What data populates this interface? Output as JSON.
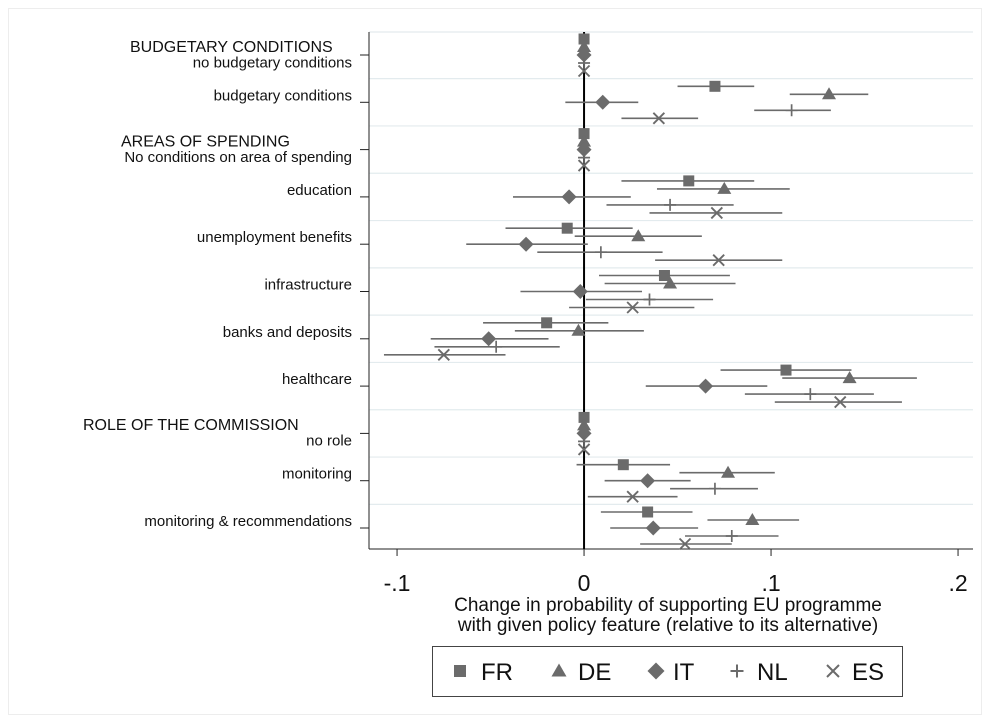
{
  "chart_data": {
    "type": "scatter",
    "xlabel": [
      "Change in probability of supporting EU programme",
      "with given policy feature (relative to its alternative)"
    ],
    "xlim": [
      -0.115,
      0.208
    ],
    "xticks": [
      {
        "value": -0.1,
        "label": "-.1"
      },
      {
        "value": 0,
        "label": "0"
      },
      {
        "value": 0.1,
        "label": ".1"
      },
      {
        "value": 0.2,
        "label": ".2"
      }
    ],
    "reference_line": 0,
    "confidence_intervals": true,
    "grid": true,
    "legend_position": "bottom",
    "groups": [
      {
        "heading": "BUDGETARY CONDITIONS",
        "first": 0
      },
      {
        "heading": "AREAS OF SPENDING",
        "first": 2
      },
      {
        "heading": "ROLE OF THE COMMISSION",
        "first": 8
      }
    ],
    "categories": [
      "no budgetary conditions",
      "budgetary conditions",
      "No conditions on area of spending",
      "education",
      "unemployment benefits",
      "infrastructure",
      "banks and deposits",
      "healthcare",
      "no role",
      "monitoring",
      "monitoring & recommendations"
    ],
    "series": [
      {
        "name": "FR",
        "marker": "square",
        "color": "#6b6b6b",
        "values": [
          0,
          0.07,
          0,
          0.056,
          -0.009,
          0.043,
          -0.02,
          0.108,
          0,
          0.021,
          0.034
        ],
        "ci_low": [
          null,
          0.05,
          null,
          0.02,
          -0.042,
          0.008,
          -0.054,
          0.073,
          null,
          -0.004,
          0.009
        ],
        "ci_high": [
          null,
          0.091,
          null,
          0.091,
          0.026,
          0.078,
          0.013,
          0.143,
          null,
          0.046,
          0.058
        ]
      },
      {
        "name": "DE",
        "marker": "triangle",
        "color": "#6b6b6b",
        "values": [
          0,
          0.131,
          0,
          0.075,
          0.029,
          0.046,
          -0.003,
          0.142,
          0,
          0.077,
          0.09
        ],
        "ci_low": [
          null,
          0.11,
          null,
          0.039,
          -0.005,
          0.011,
          -0.037,
          0.106,
          null,
          0.051,
          0.066
        ],
        "ci_high": [
          null,
          0.152,
          null,
          0.11,
          0.063,
          0.081,
          0.032,
          0.178,
          null,
          0.102,
          0.115
        ]
      },
      {
        "name": "IT",
        "marker": "diamond",
        "color": "#6b6b6b",
        "values": [
          0,
          0.01,
          0,
          -0.008,
          -0.031,
          -0.002,
          -0.051,
          0.065,
          0,
          0.034,
          0.037
        ],
        "ci_low": [
          null,
          -0.01,
          null,
          -0.038,
          -0.063,
          -0.034,
          -0.082,
          0.033,
          null,
          0.011,
          0.014
        ],
        "ci_high": [
          null,
          0.029,
          null,
          0.025,
          0.002,
          0.031,
          -0.019,
          0.098,
          null,
          0.057,
          0.061
        ]
      },
      {
        "name": "NL",
        "marker": "plus",
        "color": "#6b6b6b",
        "values": [
          0,
          0.111,
          0,
          0.046,
          0.009,
          0.035,
          -0.047,
          0.121,
          0,
          0.07,
          0.079
        ],
        "ci_low": [
          null,
          0.091,
          null,
          0.012,
          -0.025,
          0.001,
          -0.08,
          0.086,
          null,
          0.046,
          0.054
        ],
        "ci_high": [
          null,
          0.132,
          null,
          0.08,
          0.042,
          0.069,
          -0.013,
          0.155,
          null,
          0.093,
          0.104
        ]
      },
      {
        "name": "ES",
        "marker": "x",
        "color": "#6b6b6b",
        "values": [
          0,
          0.04,
          0,
          0.071,
          0.072,
          0.026,
          -0.075,
          0.137,
          0,
          0.026,
          0.054
        ],
        "ci_low": [
          null,
          0.02,
          null,
          0.035,
          0.038,
          -0.008,
          -0.107,
          0.102,
          null,
          0.002,
          0.03
        ],
        "ci_high": [
          null,
          0.061,
          null,
          0.106,
          0.106,
          0.059,
          -0.042,
          0.17,
          null,
          0.05,
          0.079
        ]
      }
    ]
  }
}
